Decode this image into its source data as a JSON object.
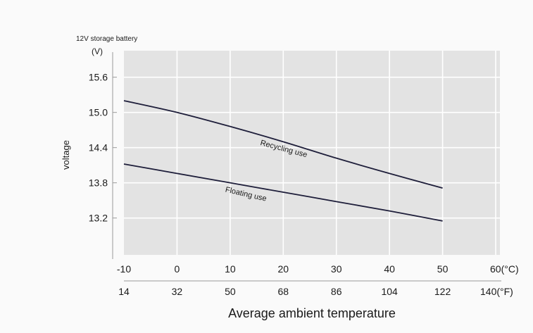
{
  "chart_data": {
    "type": "line",
    "title": "12V storage battery",
    "y_unit": "(V)",
    "ylabel": "voltage",
    "xlabel": "Average ambient temperature",
    "ylim": [
      12.5,
      16.1
    ],
    "xlim": [
      -10,
      60
    ],
    "y_ticks": [
      {
        "value": 13.2,
        "label": "13.2"
      },
      {
        "value": 13.8,
        "label": "13.8"
      },
      {
        "value": 14.4,
        "label": "14.4"
      },
      {
        "value": 15.0,
        "label": "15.0"
      },
      {
        "value": 15.6,
        "label": "15.6"
      }
    ],
    "x_ticks_celsius": [
      {
        "value": -10,
        "label": "-10"
      },
      {
        "value": 0,
        "label": "0"
      },
      {
        "value": 10,
        "label": "10"
      },
      {
        "value": 20,
        "label": "20"
      },
      {
        "value": 30,
        "label": "30"
      },
      {
        "value": 40,
        "label": "40"
      },
      {
        "value": 50,
        "label": "50"
      },
      {
        "value": 60,
        "label": "60(°C)"
      }
    ],
    "x_ticks_fahrenheit": [
      {
        "value": -10,
        "label": "14"
      },
      {
        "value": 0,
        "label": "32"
      },
      {
        "value": 10,
        "label": "50"
      },
      {
        "value": 20,
        "label": "68"
      },
      {
        "value": 30,
        "label": "86"
      },
      {
        "value": 40,
        "label": "104"
      },
      {
        "value": 50,
        "label": "122"
      },
      {
        "value": 60,
        "label": "140(°F)"
      }
    ],
    "grid": true,
    "series": [
      {
        "name": "Recycling use",
        "x": [
          -10,
          0,
          10,
          20,
          30,
          40,
          50
        ],
        "y": [
          15.2,
          15.0,
          14.76,
          14.5,
          14.22,
          13.96,
          13.71
        ]
      },
      {
        "name": "Floating use",
        "x": [
          -10,
          0,
          10,
          20,
          30,
          40,
          50
        ],
        "y": [
          14.12,
          13.96,
          13.8,
          13.64,
          13.48,
          13.32,
          13.15
        ]
      }
    ],
    "colors": {
      "background": "#fafafa",
      "plot_area": "#e3e3e3",
      "grid": "#ffffff",
      "line": "#1e1e3a",
      "text": "#1a1a1a"
    }
  }
}
